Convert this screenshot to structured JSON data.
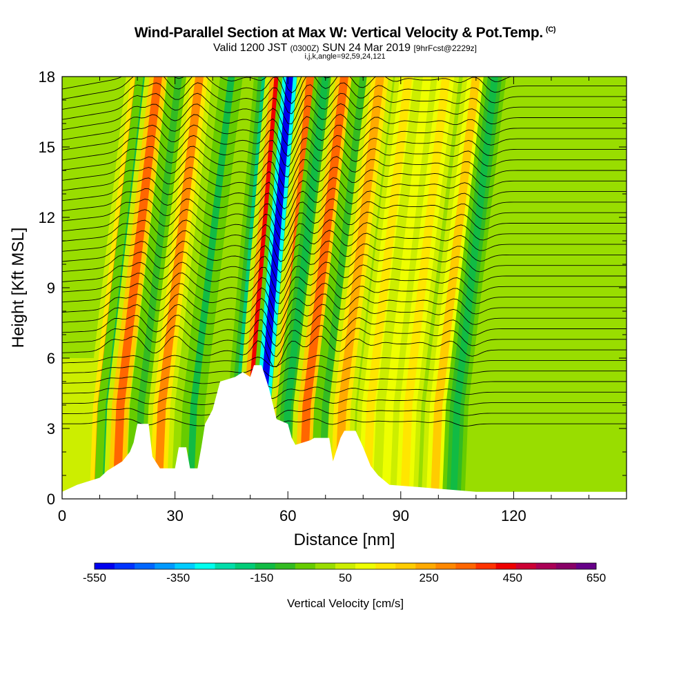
{
  "header": {
    "title": "Wind-Parallel Section at Max W: Vertical Velocity & Pot.Temp.",
    "copyright": "(C)",
    "valid_prefix": "Valid 1200 JST",
    "valid_utc": "(0300Z)",
    "valid_date": "SUN 24 Mar 2019",
    "forecast": "[9hrFcst@2229z]",
    "indices": "i,j,k,angle=92,59,24,121"
  },
  "chart_data": {
    "type": "heatmap",
    "xlabel": "Distance [nm]",
    "ylabel": "Height [Kft MSL]",
    "xlim": [
      0,
      150
    ],
    "ylim": [
      0,
      18
    ],
    "x_ticks": [
      "0",
      "30",
      "60",
      "90",
      "120"
    ],
    "y_ticks": [
      "0",
      "3",
      "6",
      "9",
      "12",
      "15",
      "18"
    ],
    "field": "Vertical velocity (shaded) and potential temperature (contours)",
    "velocity_bands": [
      {
        "x": 20.5,
        "peak_cm_s": 300
      },
      {
        "x": 22.5,
        "peak_cm_s": -120
      },
      {
        "x": 25.5,
        "peak_cm_s": 320
      },
      {
        "x": 31,
        "peak_cm_s": -100
      },
      {
        "x": 36.5,
        "peak_cm_s": 300
      },
      {
        "x": 45,
        "peak_cm_s": -120
      },
      {
        "x": 54,
        "peak_cm_s": -180
      },
      {
        "x": 57.5,
        "peak_cm_s": 450
      },
      {
        "x": 60.5,
        "peak_cm_s": -550
      },
      {
        "x": 66,
        "peak_cm_s": 320
      },
      {
        "x": 70,
        "peak_cm_s": -150
      },
      {
        "x": 75,
        "peak_cm_s": 320
      },
      {
        "x": 80,
        "peak_cm_s": -100
      },
      {
        "x": 84.5,
        "peak_cm_s": 250
      },
      {
        "x": 92,
        "peak_cm_s": 150
      },
      {
        "x": 97,
        "peak_cm_s": 100
      },
      {
        "x": 102,
        "peak_cm_s": 150
      },
      {
        "x": 110,
        "peak_cm_s": 200
      },
      {
        "x": 115,
        "peak_cm_s": -150
      }
    ],
    "terrain_kft": [
      [
        0,
        0.3
      ],
      [
        4,
        0.6
      ],
      [
        10,
        0.9
      ],
      [
        12,
        1.2
      ],
      [
        16,
        1.6
      ],
      [
        18,
        2.0
      ],
      [
        19,
        2.4
      ],
      [
        20,
        3.2
      ],
      [
        23,
        3.2
      ],
      [
        24,
        1.8
      ],
      [
        26,
        1.3
      ],
      [
        30,
        1.3
      ],
      [
        31,
        2.2
      ],
      [
        33,
        2.2
      ],
      [
        34,
        1.3
      ],
      [
        36,
        1.3
      ],
      [
        37,
        2.2
      ],
      [
        38,
        3.2
      ],
      [
        39,
        3.5
      ],
      [
        40,
        3.8
      ],
      [
        42,
        5.0
      ],
      [
        46,
        5.2
      ],
      [
        48,
        5.4
      ],
      [
        50,
        5.2
      ],
      [
        51,
        5.7
      ],
      [
        53,
        5.7
      ],
      [
        54,
        5.2
      ],
      [
        55,
        4.7
      ],
      [
        57,
        3.4
      ],
      [
        60,
        3.2
      ],
      [
        61,
        2.6
      ],
      [
        62,
        2.3
      ],
      [
        66,
        2.5
      ],
      [
        67,
        2.6
      ],
      [
        71,
        2.6
      ],
      [
        72,
        1.6
      ],
      [
        74,
        2.6
      ],
      [
        75,
        2.9
      ],
      [
        78,
        2.9
      ],
      [
        80,
        2.2
      ],
      [
        82,
        1.4
      ],
      [
        84,
        1.0
      ],
      [
        87,
        0.6
      ],
      [
        95,
        0.5
      ],
      [
        110,
        0.3
      ],
      [
        150,
        0.3
      ]
    ]
  },
  "colorbar": {
    "label": "Vertical Velocity [cm/s]",
    "tick_labels": [
      "-550",
      "-350",
      "-150",
      "50",
      "250",
      "450",
      "650"
    ],
    "colors": [
      "#0000ee",
      "#0033ff",
      "#0066ff",
      "#0099ff",
      "#00ccff",
      "#00ffee",
      "#00ddaa",
      "#00cc77",
      "#11bb44",
      "#33bb22",
      "#66cc00",
      "#99dd00",
      "#ccee00",
      "#eeff00",
      "#ffe600",
      "#ffcc00",
      "#ffaa00",
      "#ff8800",
      "#ff6600",
      "#ff3300",
      "#ee0000",
      "#cc0033",
      "#aa0055",
      "#880066",
      "#660088"
    ]
  }
}
